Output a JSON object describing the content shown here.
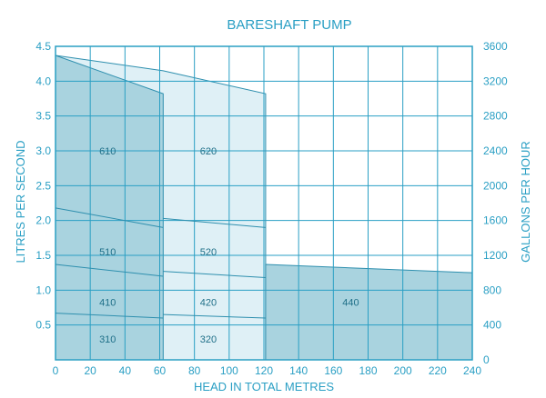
{
  "chart_data": {
    "type": "area",
    "title": "BARESHAFT PUMP",
    "xlabel": "HEAD IN TOTAL METRES",
    "ylabel": "LITRES PER SECOND",
    "y2label": "GALLONS PER HOUR",
    "xlim": [
      0,
      240
    ],
    "ylim": [
      0,
      4.5
    ],
    "y2lim": [
      0,
      3600
    ],
    "x_ticks": [
      "0",
      "20",
      "40",
      "60",
      "80",
      "100",
      "120",
      "140",
      "160",
      "180",
      "200",
      "220",
      "240"
    ],
    "y_ticks": [
      "0.5",
      "1.0",
      "1.5",
      "2.0",
      "2.5",
      "3.0",
      "3.5",
      "4.0",
      "4.5"
    ],
    "y2_ticks": [
      "0",
      "400",
      "800",
      "1200",
      "1600",
      "2000",
      "2400",
      "2800",
      "3200",
      "3600"
    ],
    "grid": true,
    "colors": {
      "axis": "#2a9fc4",
      "band_dark": "#a9d3df",
      "band_light": "#dff0f6",
      "line": "#2e8fae"
    },
    "bands": [
      {
        "name": "610",
        "x_range": [
          0,
          62
        ],
        "top": [
          [
            0,
            4.37
          ],
          [
            62,
            3.82
          ]
        ],
        "shade": "dark",
        "label_at": [
          30,
          3.0
        ]
      },
      {
        "name": "620",
        "x_range": [
          62,
          121
        ],
        "top": [
          [
            62,
            4.15
          ],
          [
            121,
            3.82
          ]
        ],
        "back_edge": [
          [
            0,
            4.37
          ],
          [
            62,
            4.15
          ]
        ],
        "shade": "light",
        "label_at": [
          88,
          3.0
        ]
      },
      {
        "name": "440",
        "x_range": [
          121,
          240
        ],
        "top": [
          [
            121,
            1.37
          ],
          [
            240,
            1.25
          ]
        ],
        "shade": "dark",
        "label_at": [
          170,
          0.83
        ]
      }
    ],
    "series": [
      {
        "name": "510",
        "segments": [
          [
            [
              0,
              2.18
            ],
            [
              62,
              1.9
            ]
          ],
          [
            [
              62,
              2.03
            ],
            [
              121,
              1.9
            ]
          ]
        ]
      },
      {
        "name": "410",
        "segments": [
          [
            [
              0,
              1.37
            ],
            [
              62,
              1.2
            ]
          ],
          [
            [
              62,
              1.27
            ],
            [
              121,
              1.18
            ]
          ]
        ]
      },
      {
        "name": "310",
        "segments": [
          [
            [
              0,
              0.67
            ],
            [
              62,
              0.6
            ]
          ],
          [
            [
              62,
              0.65
            ],
            [
              121,
              0.6
            ]
          ]
        ]
      }
    ],
    "region_labels": [
      {
        "text": "610",
        "x": 30,
        "y": 3.0
      },
      {
        "text": "620",
        "x": 88,
        "y": 3.0
      },
      {
        "text": "510",
        "x": 30,
        "y": 1.55
      },
      {
        "text": "520",
        "x": 88,
        "y": 1.55
      },
      {
        "text": "410",
        "x": 30,
        "y": 0.83
      },
      {
        "text": "420",
        "x": 88,
        "y": 0.83
      },
      {
        "text": "310",
        "x": 30,
        "y": 0.3
      },
      {
        "text": "320",
        "x": 88,
        "y": 0.3
      },
      {
        "text": "440",
        "x": 170,
        "y": 0.83
      }
    ]
  }
}
